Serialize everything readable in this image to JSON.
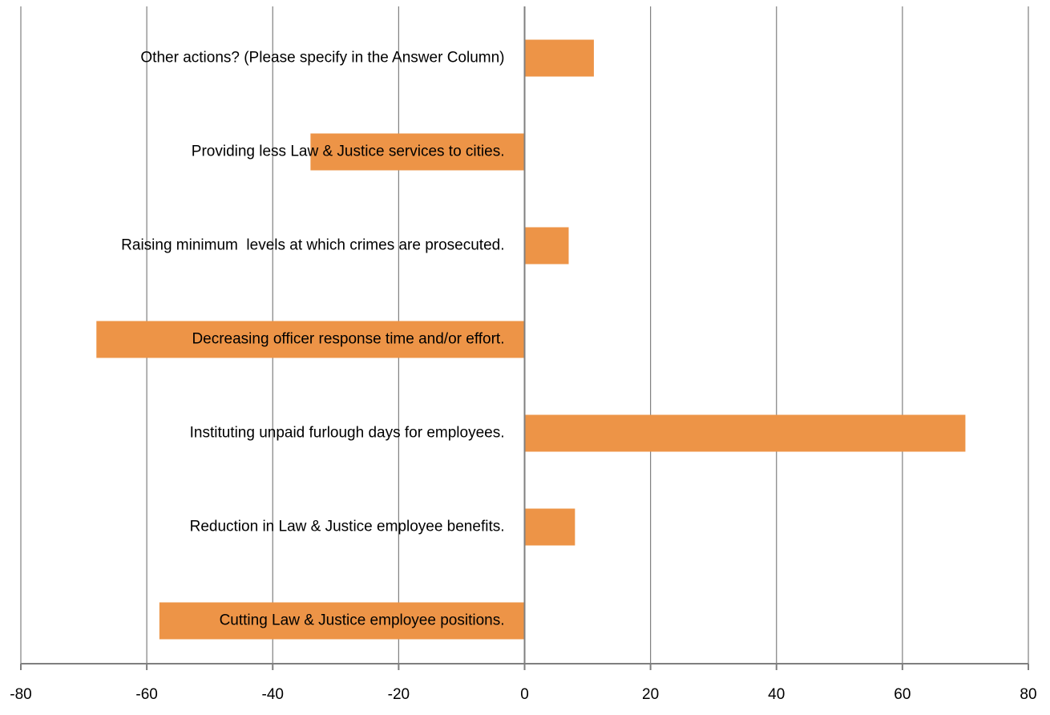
{
  "chart_data": {
    "type": "bar",
    "orientation": "horizontal",
    "title": "",
    "xlabel": "",
    "ylabel": "",
    "xlim": [
      -80,
      80
    ],
    "x_ticks": [
      -80,
      -60,
      -40,
      -20,
      0,
      20,
      40,
      60,
      80
    ],
    "x_tick_labels": [
      "-80",
      "-60",
      "-40",
      "-20",
      "0",
      "20",
      "40",
      "60",
      "80"
    ],
    "grid": true,
    "legend": "none",
    "bar_color": "#ED9447",
    "categories": [
      "Other actions? (Please specify in the Answer Column)",
      "Providing less Law & Justice services to cities.",
      "Raising minimum  levels at which crimes are prosecuted.",
      "Decreasing officer response time and/or effort.",
      "Instituting unpaid furlough days for employees.",
      "Reduction in Law & Justice employee benefits.",
      "Cutting Law & Justice employee positions."
    ],
    "values": [
      11,
      -34,
      7,
      -68,
      70,
      8,
      -58
    ]
  }
}
